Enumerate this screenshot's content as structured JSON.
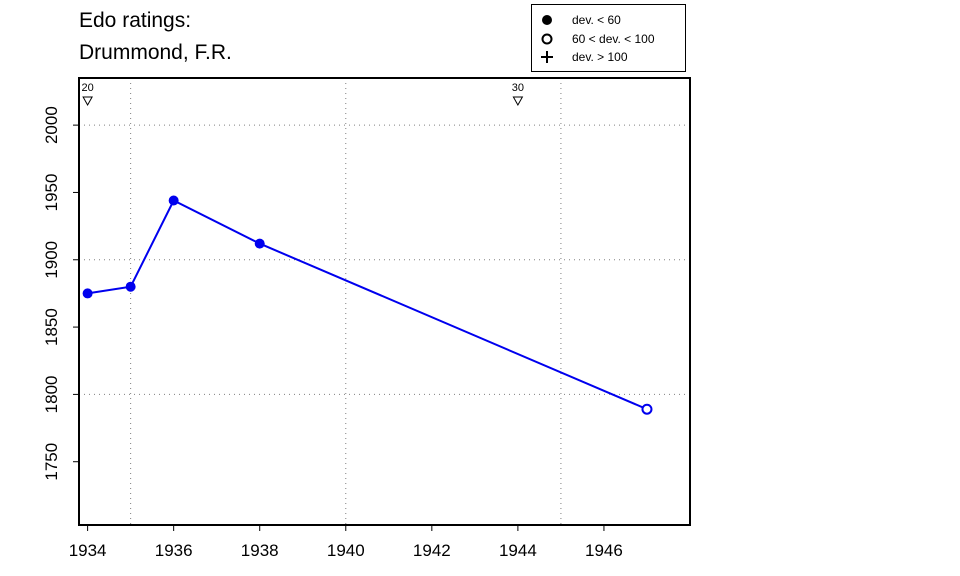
{
  "title_line1": "Edo ratings:",
  "title_line2": "Drummond, F.R.",
  "legend": [
    {
      "symbol": "filled-circle",
      "label": "dev. < 60"
    },
    {
      "symbol": "open-circle",
      "label": "60 < dev. < 100"
    },
    {
      "symbol": "plus",
      "label": "dev. > 100"
    }
  ],
  "colors": {
    "series": "#0000ee",
    "axis": "#000000",
    "grid": "#808080"
  },
  "chart_data": {
    "type": "line",
    "x": [
      1934,
      1935,
      1936,
      1938,
      1947
    ],
    "y": [
      1875,
      1880,
      1944,
      1912,
      1789
    ],
    "point_style": [
      "filled-circle",
      "filled-circle",
      "filled-circle",
      "filled-circle",
      "open-circle"
    ],
    "xlim": [
      1933.8,
      1948.0
    ],
    "ylim": [
      1703,
      2035
    ],
    "x_ticks": [
      1934,
      1936,
      1938,
      1940,
      1942,
      1944,
      1946
    ],
    "y_ticks": [
      1750,
      1800,
      1850,
      1900,
      1950,
      2000
    ],
    "x_grid": [
      1935,
      1940,
      1945
    ],
    "y_grid": [
      1800,
      1900,
      2000
    ],
    "rank_markers": [
      {
        "x": 1934,
        "label": "20"
      },
      {
        "x": 1944,
        "label": "30"
      }
    ],
    "grid": true,
    "legend_position": "top-right"
  }
}
